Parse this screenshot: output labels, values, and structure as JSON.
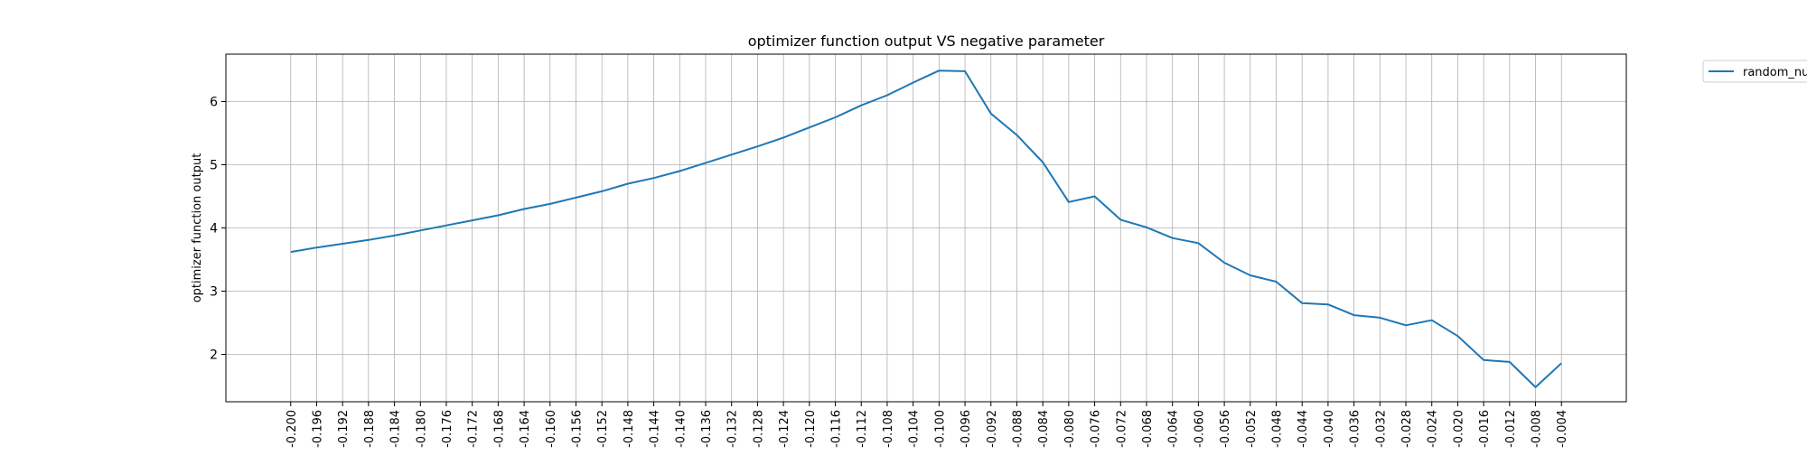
{
  "chart_data": {
    "type": "line",
    "title": "optimizer function output VS negative parameter",
    "xlabel": "",
    "ylabel": "optimizer function output",
    "x": [
      -0.2,
      -0.196,
      -0.192,
      -0.188,
      -0.184,
      -0.18,
      -0.176,
      -0.172,
      -0.168,
      -0.164,
      -0.16,
      -0.156,
      -0.152,
      -0.148,
      -0.144,
      -0.14,
      -0.136,
      -0.132,
      -0.128,
      -0.124,
      -0.12,
      -0.116,
      -0.112,
      -0.108,
      -0.104,
      -0.1,
      -0.096,
      -0.092,
      -0.088,
      -0.084,
      -0.08,
      -0.076,
      -0.072,
      -0.068,
      -0.064,
      -0.06,
      -0.056,
      -0.052,
      -0.048,
      -0.044,
      -0.04,
      -0.036,
      -0.032,
      -0.028,
      -0.024,
      -0.02,
      -0.016,
      -0.012,
      -0.008,
      -0.004
    ],
    "x_tick_labels": [
      "-0.200",
      "-0.196",
      "-0.192",
      "-0.188",
      "-0.184",
      "-0.180",
      "-0.176",
      "-0.172",
      "-0.168",
      "-0.164",
      "-0.160",
      "-0.156",
      "-0.152",
      "-0.148",
      "-0.144",
      "-0.140",
      "-0.136",
      "-0.132",
      "-0.128",
      "-0.124",
      "-0.120",
      "-0.116",
      "-0.112",
      "-0.108",
      "-0.104",
      "-0.100",
      "-0.096",
      "-0.092",
      "-0.088",
      "-0.084",
      "-0.080",
      "-0.076",
      "-0.072",
      "-0.068",
      "-0.064",
      "-0.060",
      "-0.056",
      "-0.052",
      "-0.048",
      "-0.044",
      "-0.040",
      "-0.036",
      "-0.032",
      "-0.028",
      "-0.024",
      "-0.020",
      "-0.016",
      "-0.012",
      "-0.008",
      "-0.004"
    ],
    "xlim": [
      -0.21,
      0.006
    ],
    "ylim": [
      1.25,
      6.75
    ],
    "y_ticks": [
      2,
      3,
      4,
      5,
      6
    ],
    "y_tick_labels": [
      "2",
      "3",
      "4",
      "5",
      "6"
    ],
    "grid": true,
    "legend_position": "outside top-right",
    "series": [
      {
        "name": "random_nu",
        "color": "#1f77b4",
        "values": [
          3.62,
          3.69,
          3.75,
          3.81,
          3.88,
          3.96,
          4.04,
          4.12,
          4.2,
          4.3,
          4.38,
          4.48,
          4.58,
          4.7,
          4.79,
          4.9,
          5.03,
          5.16,
          5.29,
          5.43,
          5.59,
          5.75,
          5.94,
          6.1,
          6.3,
          6.49,
          6.48,
          5.81,
          5.47,
          5.04,
          4.41,
          4.5,
          4.13,
          4.01,
          3.84,
          3.76,
          3.45,
          3.25,
          3.15,
          2.81,
          2.79,
          2.62,
          2.58,
          2.46,
          2.54,
          2.29,
          1.91,
          1.88,
          1.48,
          1.86
        ]
      }
    ]
  }
}
